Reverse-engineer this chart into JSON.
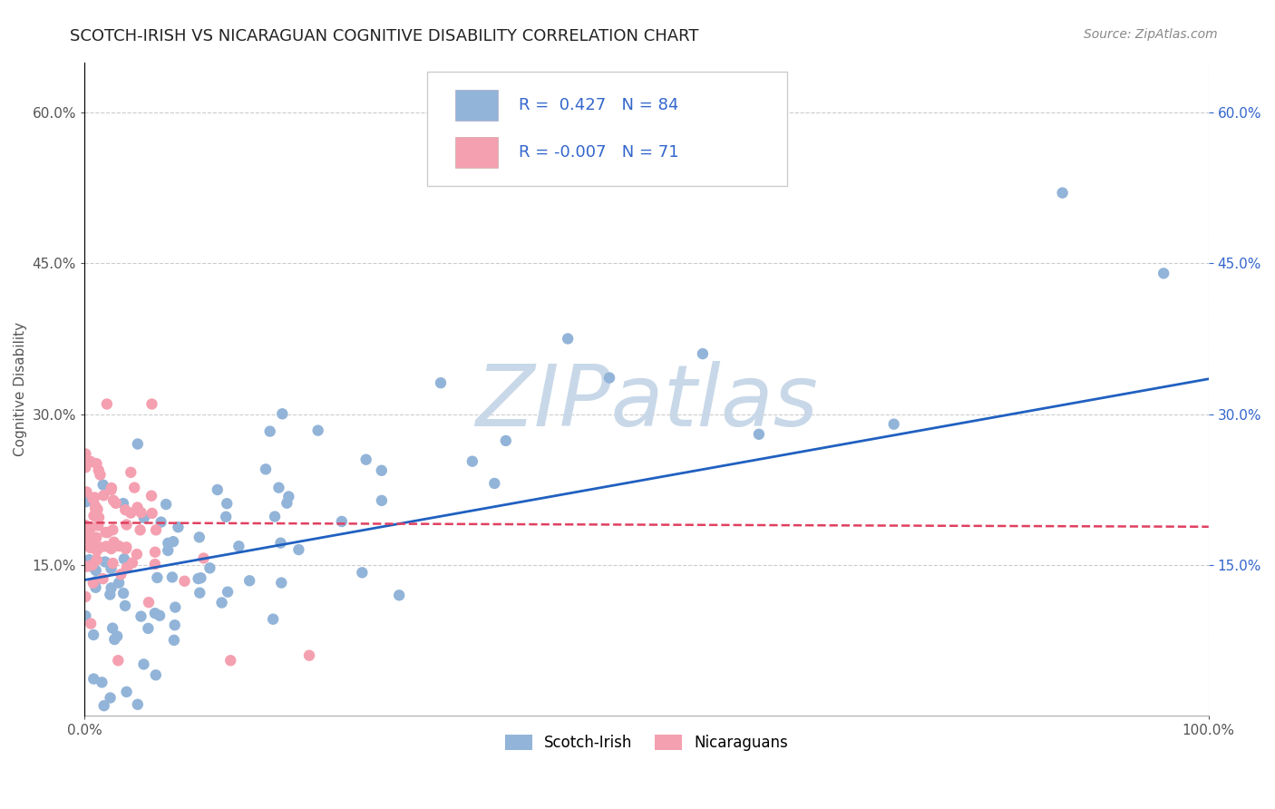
{
  "title": "SCOTCH-IRISH VS NICARAGUAN COGNITIVE DISABILITY CORRELATION CHART",
  "source_text": "Source: ZipAtlas.com",
  "ylabel": "Cognitive Disability",
  "xlim": [
    0.0,
    1.0
  ],
  "ylim": [
    0.0,
    0.65
  ],
  "yticks": [
    0.15,
    0.3,
    0.45,
    0.6
  ],
  "ytick_labels": [
    "15.0%",
    "30.0%",
    "45.0%",
    "60.0%"
  ],
  "xticks": [
    0.0,
    1.0
  ],
  "xtick_labels": [
    "0.0%",
    "100.0%"
  ],
  "R_blue": 0.427,
  "N_blue": 84,
  "R_pink": -0.007,
  "N_pink": 71,
  "blue_scatter_color": "#92b4d8",
  "pink_scatter_color": "#f4a0b0",
  "line_blue_color": "#2060c0",
  "line_pink_color": "#e04060",
  "legend_text_color": "#3366cc",
  "watermark_color": "#c8d8e8",
  "background_color": "#ffffff",
  "grid_color": "#cccccc",
  "title_fontsize": 13,
  "axis_label_fontsize": 11,
  "tick_fontsize": 11,
  "source_fontsize": 10,
  "legend_fontsize": 13,
  "watermark_fontsize": 68,
  "scatter_size": 80,
  "line_blue_start_y": 0.135,
  "line_blue_end_y": 0.335,
  "line_pink_start_y": 0.192,
  "line_pink_end_y": 0.188
}
